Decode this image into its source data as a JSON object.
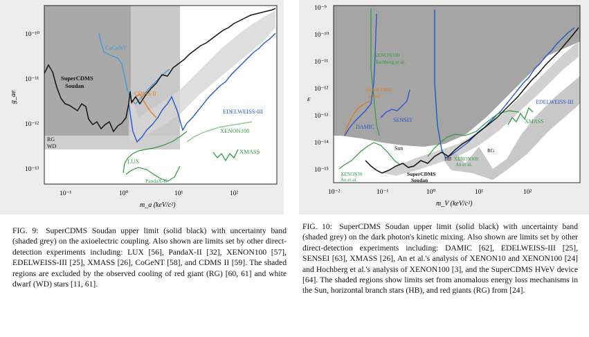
{
  "figure9": {
    "label": "FIG. 9:",
    "caption": "SuperCDMS Soudan upper limit (solid black) with uncertainty band (shaded grey) on the axioelectric coupling. Also shown are limits set by other direct-detection experiments including: LUX [56], PandaX-II [32], XENON100 [57], EDELWEISS-III [25], XMASS [26], CoGeNT [58], and CDMS II [59]. The shaded regions are excluded by the observed cooling of red giant (RG) [60, 61] and white dwarf (WD) stars [11, 61].",
    "ylabel": "g_ae",
    "xlabel": "m_a (keV/c²)",
    "x_ticks": [
      "10⁻¹",
      "10⁰",
      "10¹",
      "10²"
    ],
    "y_ticks": [
      "10⁻¹⁰",
      "10⁻¹¹",
      "10⁻¹²",
      "10⁻¹³"
    ],
    "labels": {
      "cogent": "CoGeNT",
      "supercdms1": "SuperCDMS",
      "supercdms2": "Soudan",
      "cdms2": "CDMS II",
      "edelweiss": "EDELWEISS-III",
      "xenon100": "XENON100",
      "xmass": "XMASS",
      "lux": "LUX",
      "pandax": "PandaX-II",
      "rg": "RG",
      "wd": "WD"
    },
    "colors": {
      "supercdms": "#111111",
      "cogent": "#3a9ad9",
      "cdms2": "#e07b1a",
      "edelweiss": "#2255cc",
      "green": "#2e9a3e",
      "band_dark": "#8a8a8a",
      "band_light": "#c4c4c4",
      "rg_region": "#9a9a9a",
      "wd_region": "#cfcfcf"
    }
  },
  "figure10": {
    "label": "FIG. 10:",
    "caption": "SuperCDMS Soudan upper limit (solid black) with uncertainty band (shaded grey) on the dark photon's kinetic mixing. Also shown are limits set by other direct-detection experiments including: DAMIC [62], EDELWEISS-III [25], SENSEI [63], XMASS [26], An et al.'s analysis of XENON10 and XENON100 [24] and Hochberg et al.'s analysis of XENON100 [3], and the SuperCDMS HVeV device [64]. The shaded regions show limits set from anomalous energy loss mechanisms in the Sun, horizontal branch stars (HB), and red giants (RG) from [24].",
    "ylabel": "ε",
    "xlabel": "m_V (keV/c²)",
    "x_ticks": [
      "10⁻²",
      "10⁻¹",
      "10⁰",
      "10¹",
      "10²"
    ],
    "y_ticks": [
      "10⁻⁹",
      "10⁻¹⁰",
      "10⁻¹¹",
      "10⁻¹²",
      "10⁻¹³",
      "10⁻¹⁴",
      "10⁻¹⁵"
    ],
    "labels": {
      "xenon100_h1": "XENON100",
      "xenon100_h2": "Hochberg et al.",
      "supercdms_hvev1": "SuperCDMS",
      "supercdms_hvev2": "HVeV",
      "damic": "DAMIC",
      "sensei": "SENSEI",
      "edelweiss": "EDELWEISS-III",
      "xmass": "XMASS",
      "sun": "Sun",
      "hb": "HB",
      "rg": "RG",
      "xenon10_1": "XENON10",
      "xenon10_2": "An et al.",
      "xenon100_an1": "XENON100",
      "xenon100_an2": "An et al.",
      "supercdms1": "SuperCDMS",
      "supercdms2": "Soudan"
    },
    "colors": {
      "supercdms": "#111111",
      "blue": "#2255cc",
      "green": "#2e9a3e",
      "orange": "#e07b1a",
      "sun_region": "#8f8f8f",
      "band": "#c8c8c8"
    }
  }
}
